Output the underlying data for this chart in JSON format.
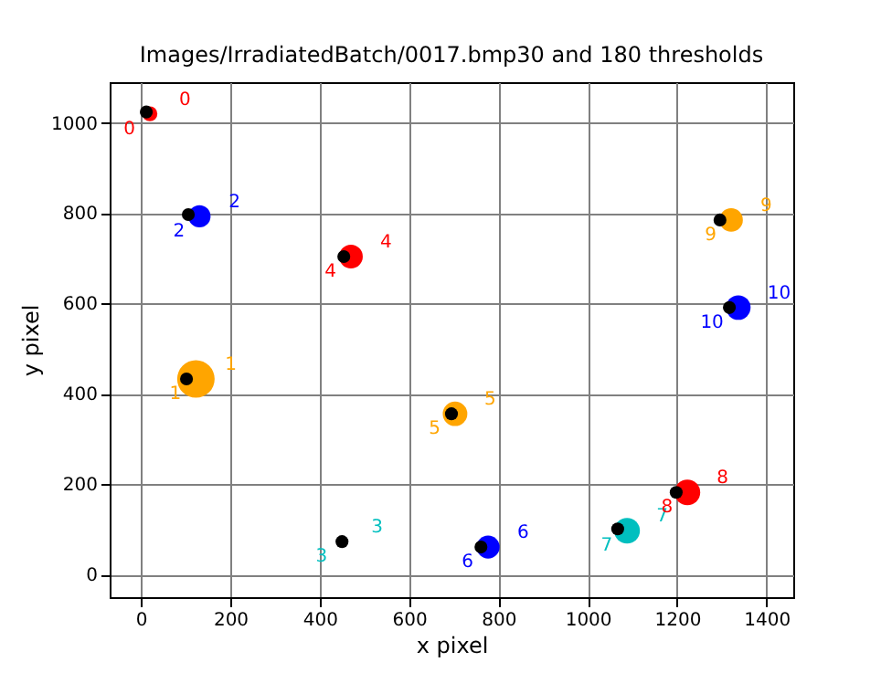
{
  "chart_data": {
    "type": "bubble",
    "title": "Images/IrradiatedBatch/0017.bmp30 and 180 thresholds",
    "xlabel": "x pixel",
    "ylabel": "y pixel",
    "xlim": [
      -70,
      1460
    ],
    "ylim": [
      -50,
      1090
    ],
    "xticks": [
      0,
      200,
      400,
      600,
      800,
      1000,
      1200,
      1400
    ],
    "yticks": [
      0,
      200,
      400,
      600,
      800,
      1000
    ],
    "grid": true,
    "series": [
      {
        "x": [
          20,
          123,
          131,
          470,
          703,
          777,
          1088,
          1223,
          1321,
          1337
        ],
        "values": [
          1020,
          433,
          793,
          704,
          356,
          61,
          97,
          182,
          785,
          591
        ],
        "sizes": [
          0.16,
          1,
          0.35,
          0.4,
          0.43,
          0.38,
          0.47,
          0.47,
          0.39,
          0.43
        ],
        "colors": [
          "#ff0000",
          "#ffa500",
          "#0000ff",
          "#ff0000",
          "#ffa500",
          "#0000ff",
          "#00bfbf",
          "#ff0000",
          "#ffa500",
          "#0000ff"
        ]
      },
      {
        "type": "scatter",
        "color": "#000000",
        "x": [
          12,
          102,
          106,
          450,
          454,
          695,
          761,
          1067,
          1198,
          1296,
          1317
        ],
        "values": [
          1024,
          433,
          797,
          73,
          704,
          356,
          61,
          101,
          182,
          785,
          591
        ]
      }
    ],
    "annotations": [
      {
        "text": "0",
        "x": 20,
        "y": 1020
      },
      {
        "text": "1",
        "x": 123,
        "y": 433
      },
      {
        "text": "2",
        "x": 131,
        "y": 793
      },
      {
        "text": "3",
        "x": 450,
        "y": 73
      },
      {
        "text": "4",
        "x": 470,
        "y": 704
      },
      {
        "text": "5",
        "x": 703,
        "y": 356
      },
      {
        "text": "6",
        "x": 777,
        "y": 61
      },
      {
        "text": "7",
        "x": 1088,
        "y": 97
      },
      {
        "text": "8",
        "x": 1223,
        "y": 182
      },
      {
        "text": "9",
        "x": 1321,
        "y": 785
      },
      {
        "text": "10",
        "x": 1337,
        "y": 591
      }
    ]
  }
}
